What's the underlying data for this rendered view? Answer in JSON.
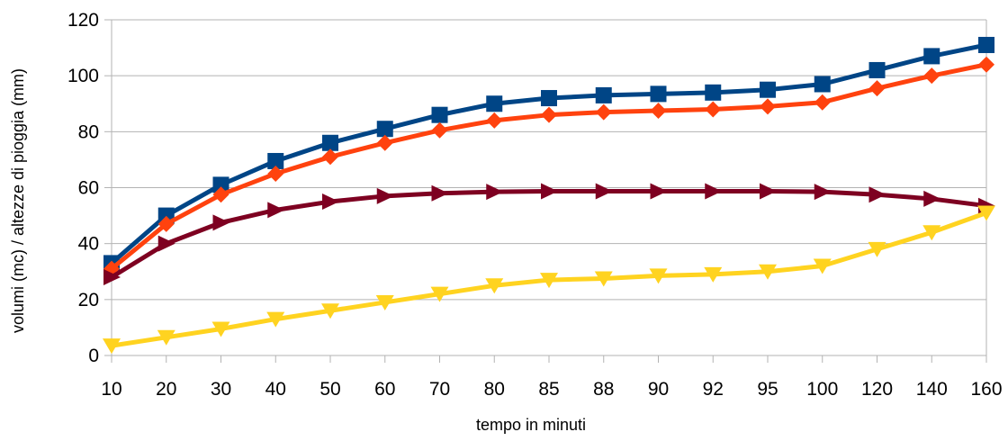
{
  "chart_data": {
    "type": "line",
    "title": "",
    "xlabel": "tempo in minuti",
    "ylabel": "volumi (mc) / altezze di pioggia (mm)",
    "categories": [
      "10",
      "20",
      "30",
      "40",
      "50",
      "60",
      "70",
      "80",
      "85",
      "88",
      "90",
      "92",
      "95",
      "100",
      "120",
      "140",
      "160"
    ],
    "ylim": [
      0,
      120
    ],
    "yticks": [
      "0",
      "20",
      "40",
      "60",
      "80",
      "100",
      "120"
    ],
    "grid": true,
    "legend": "none",
    "series": [
      {
        "color": "#004586",
        "marker": "square",
        "values": [
          33,
          50,
          61,
          69.5,
          76,
          81,
          86,
          90,
          92,
          93,
          93.5,
          94,
          95,
          97,
          102,
          107,
          111
        ]
      },
      {
        "color": "#ff420e",
        "marker": "diamond",
        "values": [
          31,
          47,
          57.5,
          65,
          71,
          76,
          80.5,
          84,
          86,
          87,
          87.5,
          88,
          89,
          90.5,
          95.5,
          100,
          104
        ]
      },
      {
        "color": "#7e0021",
        "marker": "triangle-right",
        "values": [
          28,
          40,
          47.5,
          52,
          55,
          57,
          58,
          58.5,
          58.7,
          58.7,
          58.7,
          58.7,
          58.7,
          58.5,
          57.5,
          56,
          53.5
        ]
      },
      {
        "color": "#ffd320",
        "marker": "triangle-down",
        "values": [
          3.5,
          6.5,
          9.5,
          13,
          16,
          19,
          22,
          25,
          27,
          27.5,
          28.5,
          29,
          30,
          32,
          38,
          44,
          51
        ]
      }
    ]
  }
}
